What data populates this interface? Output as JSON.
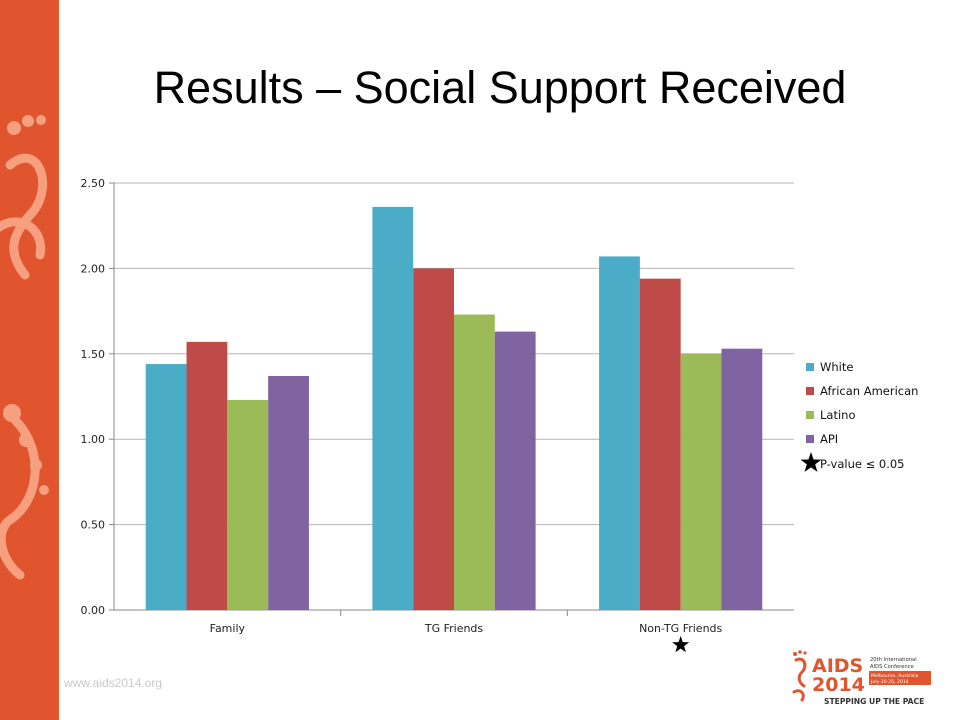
{
  "slide": {
    "title": "Results – Social Support Received",
    "website": "www.aids2014.org",
    "significance_note": "P-value ≤ 0.05",
    "logo": {
      "line1": "AIDS",
      "line2": "2014",
      "tag1": "20th International",
      "tag2": "AIDS Conference",
      "tag3": "Melbourne, Australia",
      "tag4": "July 20-25, 2014",
      "slogan": "STEPPING UP THE PACE"
    }
  },
  "colors": {
    "band": "#e0542e",
    "white_series": "#4aacc6",
    "african_american_series": "#be4b48",
    "latino_series": "#9bbb59",
    "api_series": "#8064a2"
  },
  "chart_data": {
    "type": "bar",
    "categories": [
      "Family",
      "TG Friends",
      "Non-TG Friends"
    ],
    "series": [
      {
        "name": "White",
        "color": "#4aacc6",
        "values": [
          1.44,
          2.36,
          2.07
        ]
      },
      {
        "name": "African American",
        "color": "#be4b48",
        "values": [
          1.57,
          2.0,
          1.94
        ]
      },
      {
        "name": "Latino",
        "color": "#9bbb59",
        "values": [
          1.23,
          1.73,
          1.5
        ]
      },
      {
        "name": "API",
        "color": "#8064a2",
        "values": [
          1.37,
          1.63,
          1.53
        ]
      }
    ],
    "yticks": [
      "0.00",
      "0.50",
      "1.00",
      "1.50",
      "2.00",
      "2.50"
    ],
    "ylim": [
      0,
      2.5
    ],
    "grid": true,
    "legend": "right",
    "significant_categories": [
      "Non-TG Friends"
    ]
  }
}
